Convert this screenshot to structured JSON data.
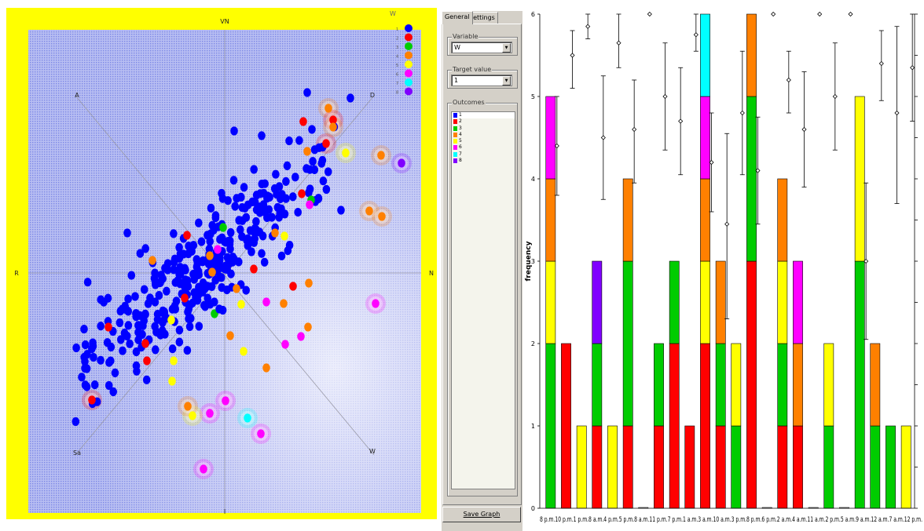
{
  "radviz": {
    "anchors": [
      {
        "label": "VN",
        "dir": "top"
      },
      {
        "label": "N",
        "dir": "right"
      },
      {
        "label": "I",
        "dir": "bottom"
      },
      {
        "label": "R",
        "dir": "left"
      },
      {
        "label": "A",
        "dir": "top-left"
      },
      {
        "label": "D",
        "dir": "top-right"
      },
      {
        "label": "W",
        "dir": "bottom-right"
      },
      {
        "label": "Sa",
        "dir": "bottom-left"
      }
    ],
    "legend_title": "W",
    "legend": [
      {
        "label": "1",
        "color": "#0000ff"
      },
      {
        "label": "2",
        "color": "#ff0000"
      },
      {
        "label": "3",
        "color": "#00cc00"
      },
      {
        "label": "4",
        "color": "#ff8000"
      },
      {
        "label": "5",
        "color": "#ffff00"
      },
      {
        "label": "6",
        "color": "#ff00ff"
      },
      {
        "label": "7",
        "color": "#00ffff"
      },
      {
        "label": "8",
        "color": "#8000ff"
      }
    ],
    "colors": {
      "frame": "#ffff00",
      "background": "#aab4f0",
      "point": "#0000ff"
    }
  },
  "panel": {
    "tabs": [
      "General",
      "Settings"
    ],
    "variable_label": "Variable",
    "variable_value": "W",
    "target_label": "Target value",
    "target_value": "1",
    "outcomes_label": "Outcomes",
    "outcomes": [
      {
        "label": "1",
        "color": "#0000ff"
      },
      {
        "label": "2",
        "color": "#ff0000"
      },
      {
        "label": "3",
        "color": "#00cc00"
      },
      {
        "label": "4",
        "color": "#ff8000"
      },
      {
        "label": "5",
        "color": "#ffff00"
      },
      {
        "label": "6",
        "color": "#ff00ff"
      },
      {
        "label": "7",
        "color": "#00ffff"
      },
      {
        "label": "8",
        "color": "#8000ff"
      }
    ],
    "save_button": "Save Graph"
  },
  "chart_data": {
    "type": "bar",
    "ylabel": "frequency",
    "ylim": [
      0,
      6
    ],
    "yticks": [
      "0",
      "1",
      "2",
      "3",
      "4",
      "5",
      "6"
    ],
    "categories": [
      "8 p.m.",
      "10 p.m.",
      "1 p.m.",
      "8 a.m.",
      "4 p.m.",
      "5 p.m.",
      "8 a.m.",
      "11 p.m.",
      "7 p.m.",
      "1 a.m.",
      "3 a.m.",
      "10 a.m.",
      "3 p.m.",
      "8 p.m.",
      "6 p.m.",
      "2 a.m.",
      "4 a.m.",
      "11 a.m.",
      "2 p.m.",
      "5 a.m.",
      "9 a.m.",
      "12 a.m.",
      "7 a.m.",
      "12 p.m."
    ],
    "xtick_text": "8 p.m.10 p.m.1 p.m.8 a.m.4 p.m.5 p.m.8 a.m.11 p.m.7 p.m.1 a.m.3 a.m.10 a.m.3 p.m.8 p.m.6 p.m.2 a.m.4 a.m.11 a.m.2 p.m.5 a.m.9 a.m.12 a.m.7 a.m.12 p.m.",
    "series": [
      {
        "color": "#ff0000",
        "values": [
          0,
          2,
          0,
          1,
          0,
          1,
          0,
          1,
          2,
          1,
          2,
          1,
          0,
          3,
          0,
          1,
          1,
          0,
          0,
          0,
          0,
          0,
          0,
          0
        ]
      },
      {
        "color": "#00cc00",
        "values": [
          2,
          0,
          0,
          1,
          0,
          2,
          0,
          1,
          1,
          0,
          0,
          1,
          1,
          2,
          0,
          1,
          0,
          0,
          1,
          0,
          3,
          1,
          1,
          0
        ]
      },
      {
        "color": "#ffff00",
        "values": [
          1,
          0,
          1,
          0,
          1,
          0,
          0,
          0,
          0,
          0,
          1,
          0,
          1,
          0,
          0,
          1,
          0,
          0,
          1,
          0,
          2,
          0,
          0,
          1
        ]
      },
      {
        "color": "#ff8000",
        "values": [
          1,
          0,
          0,
          0,
          0,
          1,
          0,
          0,
          0,
          0,
          1,
          1,
          0,
          1,
          0,
          1,
          1,
          0,
          0,
          0,
          0,
          1,
          0,
          0
        ]
      },
      {
        "color": "#ff00ff",
        "values": [
          1,
          0,
          0,
          0,
          0,
          0,
          0,
          0,
          0,
          0,
          1,
          0,
          0,
          0,
          0,
          0,
          1,
          0,
          0,
          0,
          0,
          0,
          0,
          0
        ]
      },
      {
        "color": "#00ffff",
        "values": [
          0,
          0,
          0,
          0,
          0,
          0,
          0,
          0,
          0,
          0,
          1,
          0,
          0,
          0,
          0,
          0,
          0,
          0,
          0,
          0,
          0,
          0,
          0,
          0
        ]
      },
      {
        "color": "#8000ff",
        "values": [
          0,
          0,
          0,
          1,
          0,
          0,
          0,
          0,
          0,
          0,
          0,
          0,
          0,
          0,
          0,
          0,
          0,
          0,
          0,
          0,
          0,
          0,
          0,
          0
        ]
      }
    ],
    "probability_markers": [
      {
        "mean": 4.4,
        "low": 3.8,
        "high": 5.0
      },
      {
        "mean": 5.5,
        "low": 5.1,
        "high": 5.8
      },
      {
        "mean": 5.85,
        "low": 5.7,
        "high": 6.0
      },
      {
        "mean": 4.5,
        "low": 3.75,
        "high": 5.25
      },
      {
        "mean": 5.65,
        "low": 5.35,
        "high": 6.0
      },
      {
        "mean": 4.6,
        "low": 3.95,
        "high": 5.2
      },
      {
        "mean": 6.0,
        "low": 6.0,
        "high": 6.0
      },
      {
        "mean": 5.0,
        "low": 4.35,
        "high": 5.65
      },
      {
        "mean": 4.7,
        "low": 4.05,
        "high": 5.35
      },
      {
        "mean": 5.75,
        "low": 5.55,
        "high": 6.0
      },
      {
        "mean": 4.2,
        "low": 3.6,
        "high": 4.8
      },
      {
        "mean": 3.45,
        "low": 2.3,
        "high": 4.55
      },
      {
        "mean": 4.8,
        "low": 4.05,
        "high": 5.55
      },
      {
        "mean": 4.1,
        "low": 3.45,
        "high": 4.75
      },
      {
        "mean": 6.0,
        "low": 6.0,
        "high": 6.0
      },
      {
        "mean": 5.2,
        "low": 4.8,
        "high": 5.55
      },
      {
        "mean": 4.6,
        "low": 3.9,
        "high": 5.3
      },
      {
        "mean": 6.0,
        "low": 6.0,
        "high": 6.0
      },
      {
        "mean": 5.0,
        "low": 4.35,
        "high": 5.65
      },
      {
        "mean": 6.0,
        "low": 6.0,
        "high": 6.0
      },
      {
        "mean": 3.0,
        "low": 2.05,
        "high": 3.95
      },
      {
        "mean": 5.4,
        "low": 4.95,
        "high": 5.8
      },
      {
        "mean": 4.8,
        "low": 3.7,
        "high": 5.85
      },
      {
        "mean": 5.35,
        "low": 4.7,
        "high": 6.0
      }
    ]
  }
}
